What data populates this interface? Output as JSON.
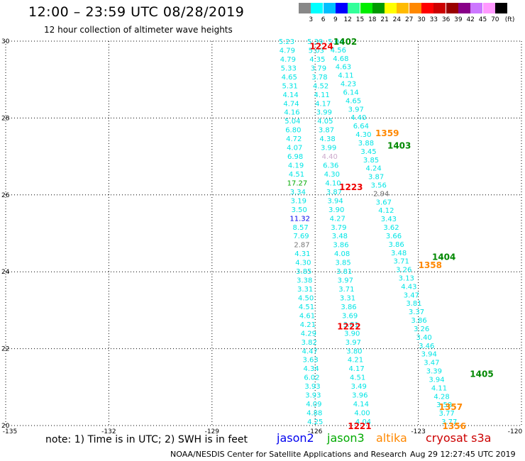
{
  "header": {
    "title": "12:00 – 23:59 UTC 08/28/2019",
    "subtitle": "12 hour collection of altimeter wave heights"
  },
  "color_scale": {
    "colors": [
      "#888888",
      "#00ffff",
      "#00bfff",
      "#0000ff",
      "#33ff99",
      "#00ee00",
      "#009900",
      "#ffff00",
      "#ffbb00",
      "#ff8800",
      "#ff0000",
      "#cc0000",
      "#990000",
      "#880088",
      "#cc77ff",
      "#ff99ff",
      "#000000"
    ],
    "labels": [
      "3",
      "6",
      "9",
      "12",
      "15",
      "18",
      "21",
      "24",
      "27",
      "30",
      "33",
      "36",
      "39",
      "42",
      "45",
      "70"
    ],
    "unit": "(ft)"
  },
  "map": {
    "lat_ticks": [
      "30",
      "28",
      "26",
      "24",
      "22",
      "20"
    ],
    "lon_ticks": [
      "-135",
      "-132",
      "-129",
      "-126",
      "-123",
      "-120"
    ],
    "tracks": [
      {
        "color": "#00e5e5",
        "lon_top": -126.83,
        "lon_bottom": -126.0,
        "values": [
          "5.23",
          "4.79",
          "4.79",
          "5.33",
          "4.65",
          "5.31",
          "4.14",
          "4.74",
          "4.16",
          "5.04",
          "6.80",
          "4.72",
          "4.07",
          "6.98",
          "4.19",
          "4.51",
          "17.27",
          "3.34",
          "3.19",
          "3.50",
          "11.32",
          "8.57",
          "7.69",
          "2.87",
          "4.31",
          "4.30",
          "3.85",
          "3.38",
          "3.31",
          "4.50",
          "4.51",
          "4.61",
          "4.21",
          "4.29",
          "3.82",
          "4.47",
          "3.63",
          "4.34",
          "6.02",
          "3.93",
          "3.93",
          "4.09",
          "4.88",
          "4.25"
        ]
      },
      {
        "color": "#00e5e5",
        "lon_top": -126.0,
        "lon_bottom": -124.6,
        "values": [
          "5.39",
          "5.03",
          "4.35",
          "3.79",
          "3.78",
          "4.52",
          "4.11",
          "4.17",
          "3.99",
          "4.05",
          "3.87",
          "4.38",
          "3.99",
          "4.40",
          "6.36",
          "4.30",
          "4.10",
          "3.87",
          "3.94",
          "3.90",
          "4.27",
          "3.79",
          "3.48",
          "3.86",
          "4.08",
          "3.85",
          "3.81",
          "3.97",
          "3.71",
          "3.31",
          "3.86",
          "3.69",
          "3.81",
          "3.90",
          "3.97",
          "3.80",
          "4.21",
          "4.17",
          "4.51",
          "3.49",
          "3.96",
          "4.14",
          "4.00",
          "4.04"
        ]
      },
      {
        "color": "#00e5e5",
        "lon_top": -125.4,
        "lon_bottom": -122.1,
        "values": [
          "5.04",
          "4.56",
          "4.68",
          "4.63",
          "4.11",
          "4.23",
          "6.14",
          "4.65",
          "3.97",
          "4.40",
          "6.64",
          "4.30",
          "3.88",
          "3.45",
          "3.85",
          "4.24",
          "3.87",
          "3.56",
          "2.94",
          "3.67",
          "4.12",
          "3.43",
          "3.62",
          "3.66",
          "3.86",
          "3.48",
          "3.71",
          "3.26",
          "3.13",
          "4.43",
          "3.47",
          "3.81",
          "3.37",
          "3.86",
          "3.26",
          "3.40",
          "3.46",
          "3.94",
          "3.47",
          "3.39",
          "3.94",
          "4.11",
          "4.28",
          "3.58",
          "3.77",
          "3.77"
        ]
      }
    ],
    "pass_labels": [
      {
        "text": "1402",
        "color": "#008800",
        "lon": -125.47,
        "lat": 29.98
      },
      {
        "text": "1224",
        "color": "#ee0000",
        "lon": -126.16,
        "lat": 29.86
      },
      {
        "text": "1359",
        "color": "#ff8800",
        "lon": -124.25,
        "lat": 27.6
      },
      {
        "text": "1403",
        "color": "#008800",
        "lon": -123.9,
        "lat": 27.28
      },
      {
        "text": "1223",
        "color": "#ee0000",
        "lon": -125.3,
        "lat": 26.2
      },
      {
        "text": "1404",
        "color": "#008800",
        "lon": -122.6,
        "lat": 24.38
      },
      {
        "text": "1358",
        "color": "#ff8800",
        "lon": -123.0,
        "lat": 24.17
      },
      {
        "text": "1222",
        "color": "#ee0000",
        "lon": -125.36,
        "lat": 22.57
      },
      {
        "text": "1405",
        "color": "#008800",
        "lon": -121.5,
        "lat": 21.34
      },
      {
        "text": "1357",
        "color": "#ff8800",
        "lon": -122.4,
        "lat": 20.48
      },
      {
        "text": "1221",
        "color": "#ee0000",
        "lon": -125.05,
        "lat": 19.98
      },
      {
        "text": "1356",
        "color": "#ff8800",
        "lon": -122.3,
        "lat": 19.98
      }
    ],
    "highlights": [
      {
        "track": 0,
        "index": 16,
        "color": "#00aa00"
      },
      {
        "track": 0,
        "index": 20,
        "color": "#0000ee"
      },
      {
        "track": 0,
        "index": 23,
        "color": "#777777"
      },
      {
        "track": 1,
        "index": 13,
        "color": "#ccaacc"
      },
      {
        "track": 2,
        "index": 18,
        "color": "#666666"
      }
    ]
  },
  "note": "note:  1) Time is in UTC;  2) SWH is in feet",
  "satellites": [
    {
      "name": "jason2",
      "color": "#0000ee"
    },
    {
      "name": "jason3",
      "color": "#00aa00"
    },
    {
      "name": "altika",
      "color": "#ff8800"
    },
    {
      "name": "cryosat s3a",
      "color": "#cc0000"
    }
  ],
  "footer": {
    "credit": "NOAA/NESDIS Center for Satellite Applications and Research",
    "timestamp": "Aug 29 12:27:45 UTC 2019"
  }
}
